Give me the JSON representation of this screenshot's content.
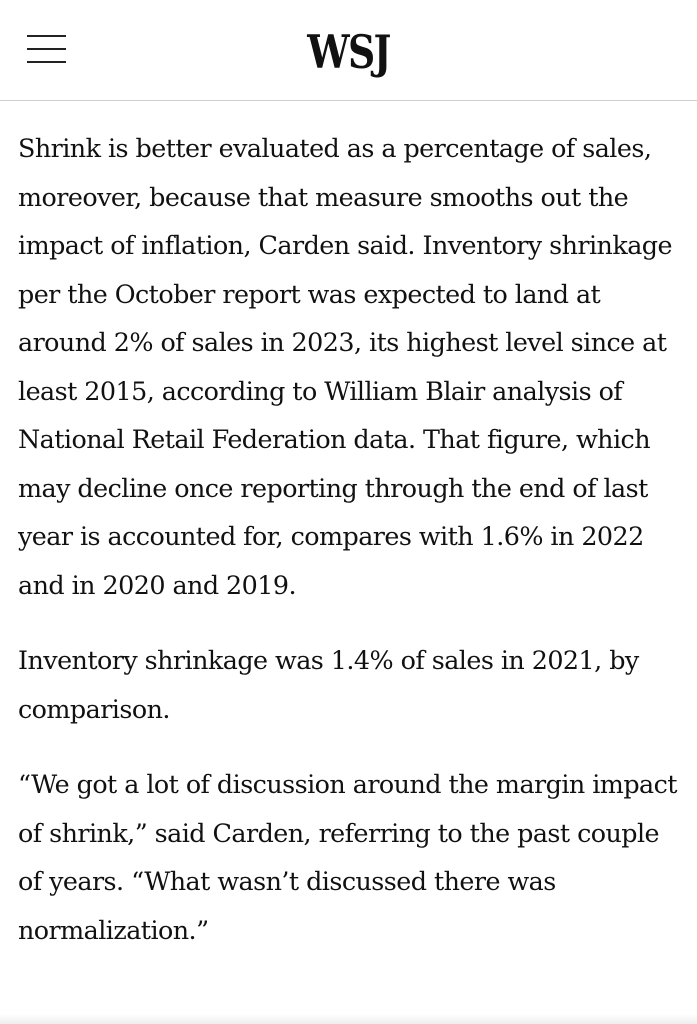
{
  "header": {
    "logo_text": "WSJ",
    "menu_icon": "hamburger-menu-icon"
  },
  "article": {
    "paragraphs": [
      "Shrink is better evaluated as a percentage of sales, moreover, because that measure smooths out the impact of inflation, Carden said. Inventory shrinkage per the October report was expected to land at around 2% of sales in 2023, its highest level since at least 2015, according to William Blair analysis of National Retail Federation data. That figure, which may decline once reporting through the end of last year is accounted for, compares with 1.6% in 2022 and in 2020 and 2019.",
      "Inventory shrinkage was 1.4% of sales in 2021, by comparison.",
      "“We got a lot of discussion around the margin impact of shrink,” said Carden, referring to the past couple of years. “What wasn’t discussed there was normalization.”"
    ]
  }
}
